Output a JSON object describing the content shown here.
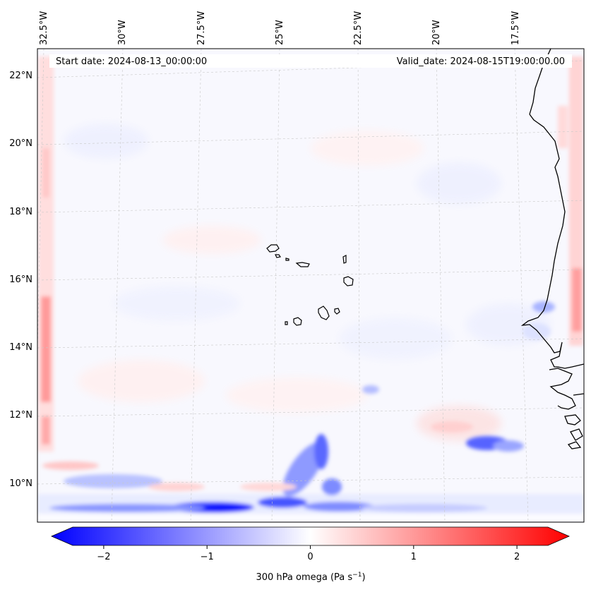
{
  "header": {
    "start_date": "Start date: 2024-08-13_00:00:00",
    "valid_date": "Valid_date: 2024-08-15T19:00:00.00"
  },
  "longitude_labels": [
    "32.5°W",
    "30°W",
    "27.5°W",
    "25°W",
    "22.5°W",
    "20°W",
    "17.5°W"
  ],
  "latitude_labels": [
    "22°N",
    "20°N",
    "18°N",
    "16°N",
    "14°N",
    "12°N",
    "10°N"
  ],
  "colorbar": {
    "min": -2.6,
    "max": 2.6,
    "ticks": [
      -2,
      -1,
      0,
      1,
      2
    ],
    "tick_labels": [
      "−2",
      "−1",
      "0",
      "1",
      "2"
    ],
    "label_main": "300 hPa omega (Pa s",
    "label_sup": "−1",
    "label_end": ")",
    "neg_color": "#0000ff",
    "pos_color": "#ff0000",
    "mid_color": "#ffffff"
  }
}
